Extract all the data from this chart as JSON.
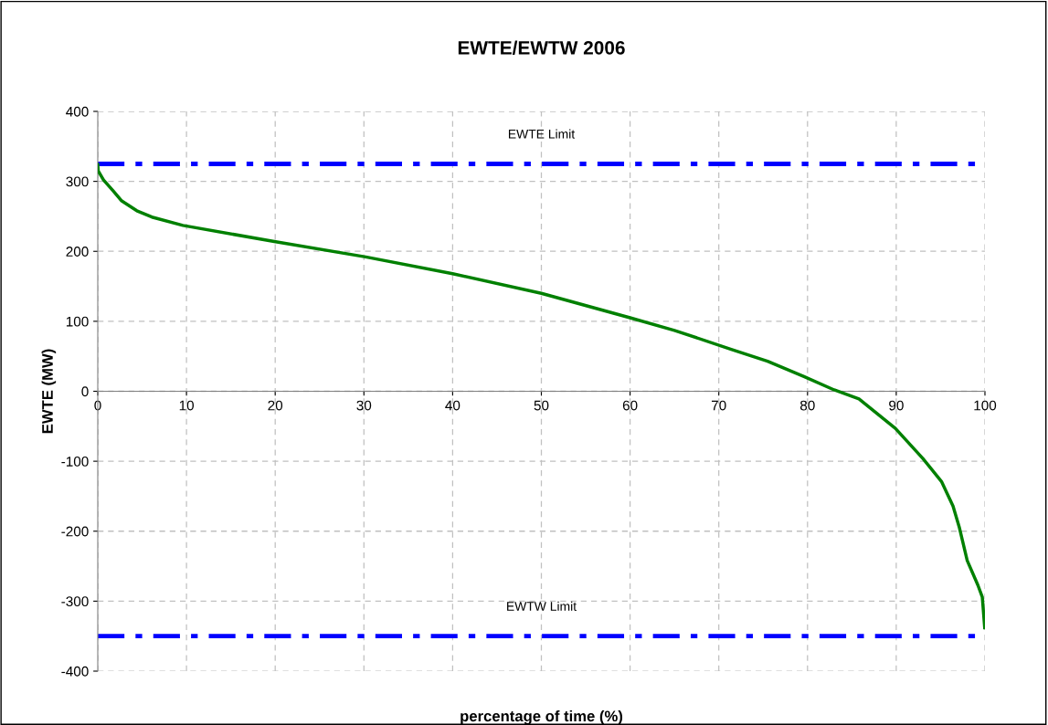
{
  "chart_data": {
    "type": "line",
    "title": "EWTE/EWTW 2006",
    "xlabel": "percentage of time (%)",
    "ylabel": "EWTE (MW)",
    "series": [
      {
        "color": "#008000",
        "x": [
          0,
          0.05,
          0.65,
          1.7,
          2.7,
          4.4,
          6.1,
          9.6,
          19.9,
          30.2,
          40,
          50,
          60,
          65,
          71.4,
          75.5,
          79.6,
          83.0,
          85.8,
          89.9,
          93.0,
          95.1,
          96.4,
          97.1,
          98.0,
          99.2,
          99.7,
          99.97
        ],
        "values": [
          324,
          315,
          302,
          287,
          272,
          258,
          249,
          237,
          214,
          192,
          168,
          140,
          105,
          87,
          60,
          43,
          21,
          2,
          -11,
          -53,
          -96,
          -129,
          -164,
          -194,
          -242,
          -277,
          -294,
          -338
        ]
      }
    ],
    "ref_lines": [
      {
        "axis": "y",
        "value": 325,
        "label": "EWTE Limit",
        "color": "#0000ff",
        "line_style": "dashdot"
      },
      {
        "axis": "y",
        "value": -350,
        "label": "EWTW Limit",
        "color": "#0000ff",
        "line_style": "dashdot"
      }
    ],
    "xlim": [
      0,
      100
    ],
    "xticks": [
      0,
      10,
      20,
      30,
      40,
      50,
      60,
      70,
      80,
      90,
      100
    ],
    "ylim": [
      -400,
      400
    ],
    "yticks": [
      -400,
      -300,
      -200,
      -100,
      0,
      100,
      200,
      300,
      400
    ],
    "grid": true,
    "marker": "none",
    "line_style": "solid"
  }
}
